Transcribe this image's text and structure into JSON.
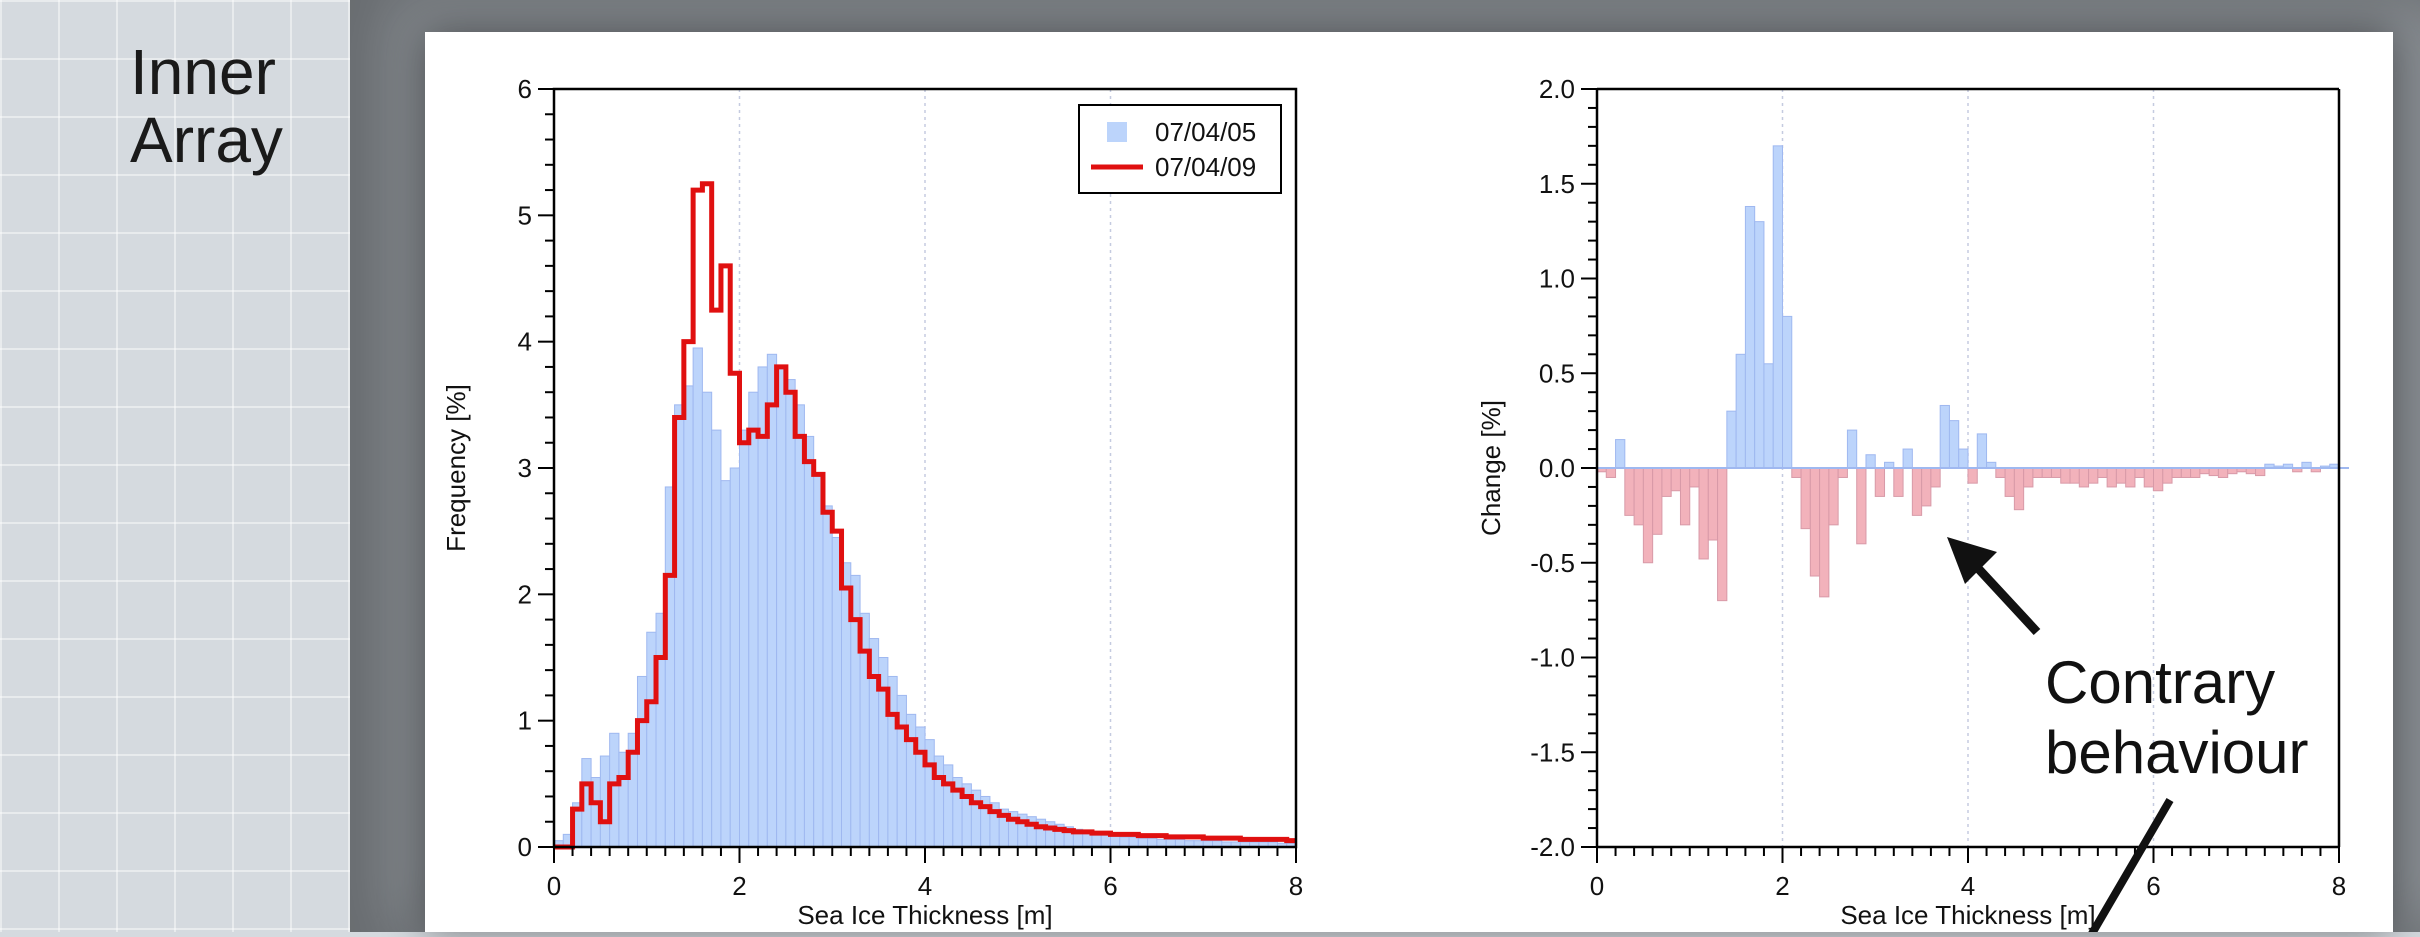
{
  "slide": {
    "title_line1": "Inner",
    "title_line2": "Array"
  },
  "annotation": {
    "line1": "Contrary",
    "line2": "behaviour"
  },
  "colors": {
    "blue_bar": "#bcd4fb",
    "blue_edge": "#9fb8f0",
    "red_line": "#e01010",
    "pink_bar": "#f2b2bb",
    "pink_edge": "#d89aa8"
  },
  "chart_data": [
    {
      "type": "bar",
      "xlabel": "Sea Ice Thickness [m]",
      "ylabel": "Frequency [%]",
      "xlim": [
        0,
        8
      ],
      "ylim": [
        0,
        6
      ],
      "xticks": [
        "0",
        "2",
        "4",
        "6",
        "8"
      ],
      "yticks": [
        "0",
        "1",
        "2",
        "3",
        "4",
        "5",
        "6"
      ],
      "legend_position": "top-right",
      "bin_width": 0.1,
      "x_start": 0.0,
      "series": [
        {
          "name": "07/04/05",
          "style": "bars",
          "values": [
            0.05,
            0.1,
            0.35,
            0.7,
            0.55,
            0.72,
            0.9,
            0.75,
            0.9,
            1.35,
            1.7,
            1.85,
            2.85,
            3.5,
            3.65,
            3.95,
            3.6,
            3.3,
            2.9,
            3.0,
            3.3,
            3.6,
            3.8,
            3.9,
            3.8,
            3.7,
            3.5,
            3.25,
            2.95,
            2.7,
            2.45,
            2.25,
            2.15,
            1.85,
            1.65,
            1.5,
            1.35,
            1.2,
            1.05,
            0.95,
            0.85,
            0.72,
            0.65,
            0.55,
            0.5,
            0.45,
            0.4,
            0.35,
            0.3,
            0.28,
            0.26,
            0.24,
            0.22,
            0.2,
            0.18,
            0.16,
            0.14,
            0.12,
            0.11,
            0.1,
            0.09,
            0.08,
            0.08,
            0.07,
            0.07,
            0.06,
            0.06,
            0.06,
            0.05,
            0.05,
            0.05,
            0.05,
            0.04,
            0.04,
            0.04,
            0.04,
            0.04,
            0.04,
            0.03,
            0.03
          ]
        },
        {
          "name": "07/04/09",
          "style": "step-line",
          "values": [
            0.0,
            0.0,
            0.3,
            0.5,
            0.35,
            0.2,
            0.5,
            0.55,
            0.75,
            1.0,
            1.15,
            1.5,
            2.15,
            3.4,
            4.0,
            5.2,
            5.25,
            4.25,
            4.6,
            3.75,
            3.2,
            3.3,
            3.25,
            3.5,
            3.8,
            3.6,
            3.25,
            3.05,
            2.95,
            2.65,
            2.5,
            2.05,
            1.8,
            1.55,
            1.35,
            1.25,
            1.05,
            0.95,
            0.85,
            0.75,
            0.65,
            0.55,
            0.5,
            0.45,
            0.4,
            0.35,
            0.32,
            0.28,
            0.25,
            0.22,
            0.2,
            0.18,
            0.16,
            0.15,
            0.14,
            0.13,
            0.12,
            0.12,
            0.11,
            0.11,
            0.1,
            0.1,
            0.1,
            0.09,
            0.09,
            0.09,
            0.08,
            0.08,
            0.08,
            0.08,
            0.07,
            0.07,
            0.07,
            0.07,
            0.06,
            0.06,
            0.06,
            0.06,
            0.06,
            0.05
          ]
        }
      ]
    },
    {
      "type": "bar",
      "xlabel": "Sea Ice Thickness [m]",
      "ylabel": "Change [%]",
      "xlim": [
        0,
        8
      ],
      "ylim": [
        -2.0,
        2.0
      ],
      "xticks": [
        "0",
        "2",
        "4",
        "6",
        "8"
      ],
      "yticks": [
        "2.0",
        "1.5",
        "1.0",
        "0.5",
        "0.0",
        "-0.5",
        "-1.0",
        "-1.5",
        "-2.0"
      ],
      "bin_width": 0.1,
      "x_start": 0.0,
      "values": [
        -0.02,
        -0.05,
        0.15,
        -0.25,
        -0.3,
        -0.5,
        -0.35,
        -0.15,
        -0.12,
        -0.3,
        -0.1,
        -0.48,
        -0.38,
        -0.7,
        0.3,
        0.6,
        1.38,
        1.3,
        0.55,
        1.7,
        0.8,
        -0.05,
        -0.32,
        -0.57,
        -0.68,
        -0.3,
        -0.05,
        0.2,
        -0.4,
        0.07,
        -0.15,
        0.03,
        -0.15,
        0.1,
        -0.25,
        -0.2,
        -0.1,
        0.33,
        0.25,
        0.1,
        -0.08,
        0.18,
        0.03,
        -0.05,
        -0.15,
        -0.22,
        -0.1,
        -0.05,
        -0.05,
        -0.05,
        -0.08,
        -0.08,
        -0.1,
        -0.08,
        -0.05,
        -0.1,
        -0.08,
        -0.1,
        -0.05,
        -0.1,
        -0.12,
        -0.08,
        -0.05,
        -0.05,
        -0.05,
        -0.03,
        -0.04,
        -0.05,
        -0.03,
        -0.02,
        -0.03,
        -0.04,
        0.02,
        0.01,
        0.02,
        -0.02,
        0.03,
        -0.02,
        0.01,
        0.02
      ]
    }
  ]
}
